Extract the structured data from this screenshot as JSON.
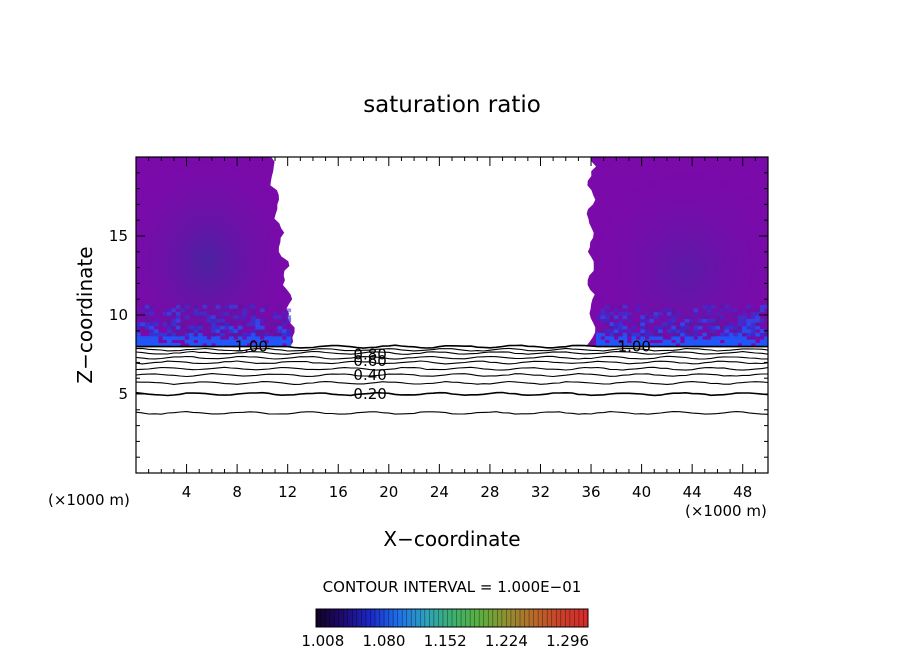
{
  "chart_data": {
    "type": "contour",
    "title": "saturation ratio",
    "xlabel": "X−coordinate",
    "ylabel": "Z−coordinate",
    "x_unit_note": "(×1000 m)",
    "y_unit_note": "(×1000 m)",
    "xlim": [
      0,
      50
    ],
    "ylim": [
      0,
      20
    ],
    "x_ticks": [
      4,
      8,
      12,
      16,
      20,
      24,
      28,
      32,
      36,
      40,
      44,
      48
    ],
    "y_ticks": [
      5,
      10,
      15
    ],
    "contour_interval_text": "CONTOUR INTERVAL = 1.000E−01",
    "contour_labels": [
      {
        "text": "1.00",
        "x": 7.8,
        "z": 8.0
      },
      {
        "text": "1.00",
        "x": 38.1,
        "z": 8.0
      },
      {
        "text": "0.80",
        "x": 17.2,
        "z": 7.5
      },
      {
        "text": "0.60",
        "x": 17.2,
        "z": 7.1
      },
      {
        "text": "0.40",
        "x": 17.2,
        "z": 6.2
      },
      {
        "text": "0.20",
        "x": 17.2,
        "z": 5.0
      }
    ],
    "contour_levels": [
      {
        "level": 1.0,
        "z": 8.0
      },
      {
        "level": 0.9,
        "z": 7.8
      },
      {
        "level": 0.8,
        "z": 7.6
      },
      {
        "level": 0.7,
        "z": 7.3
      },
      {
        "level": 0.6,
        "z": 7.0
      },
      {
        "level": 0.5,
        "z": 6.6
      },
      {
        "level": 0.4,
        "z": 6.2
      },
      {
        "level": 0.3,
        "z": 5.7
      },
      {
        "level": 0.2,
        "z": 5.0
      },
      {
        "level": 0.1,
        "z": 3.8
      }
    ],
    "supersaturated_regions": [
      {
        "x_range": [
          0,
          12.5
        ],
        "z_range": [
          8,
          20
        ],
        "description_value_range": [
          1.008,
          1.08
        ]
      },
      {
        "x_range": [
          36,
          50
        ],
        "z_range": [
          8,
          20
        ],
        "description_value_range": [
          1.008,
          1.08
        ]
      }
    ],
    "colorbar": {
      "tick_labels": [
        "1.008",
        "1.080",
        "1.152",
        "1.224",
        "1.296"
      ],
      "range": [
        1.0,
        1.32
      ],
      "colors": [
        "#120224",
        "#1e0a70",
        "#1a28c8",
        "#1e6ee8",
        "#2ea0c0",
        "#3cb070",
        "#5ab040",
        "#909030",
        "#b86a2a",
        "#c8402a",
        "#d82a2a"
      ]
    },
    "colors": {
      "purple_fill": "#7a0aaa",
      "deep_purple": "#5a18a0",
      "blue_band": "#2a3cdc",
      "bright_blue": "#1a5cff"
    }
  }
}
